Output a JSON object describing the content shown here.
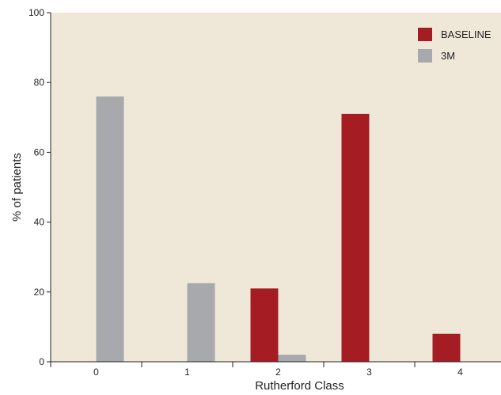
{
  "chart_data": {
    "type": "bar",
    "categories": [
      "0",
      "1",
      "2",
      "3",
      "4"
    ],
    "series": [
      {
        "name": "BASELINE",
        "color": "#a51c23",
        "values": [
          0,
          0,
          21,
          71,
          8
        ]
      },
      {
        "name": "3M",
        "color": "#a7a9ac",
        "values": [
          76,
          22.5,
          2,
          0,
          0
        ]
      }
    ],
    "title": "",
    "xlabel": "Rutherford Class",
    "ylabel": "% of patients",
    "ylim": [
      0,
      100
    ],
    "yticks": [
      "0",
      "20",
      "40",
      "60",
      "80",
      "100"
    ],
    "grid": false,
    "legend_position": "top-right",
    "background_color": "#efe8d8"
  }
}
